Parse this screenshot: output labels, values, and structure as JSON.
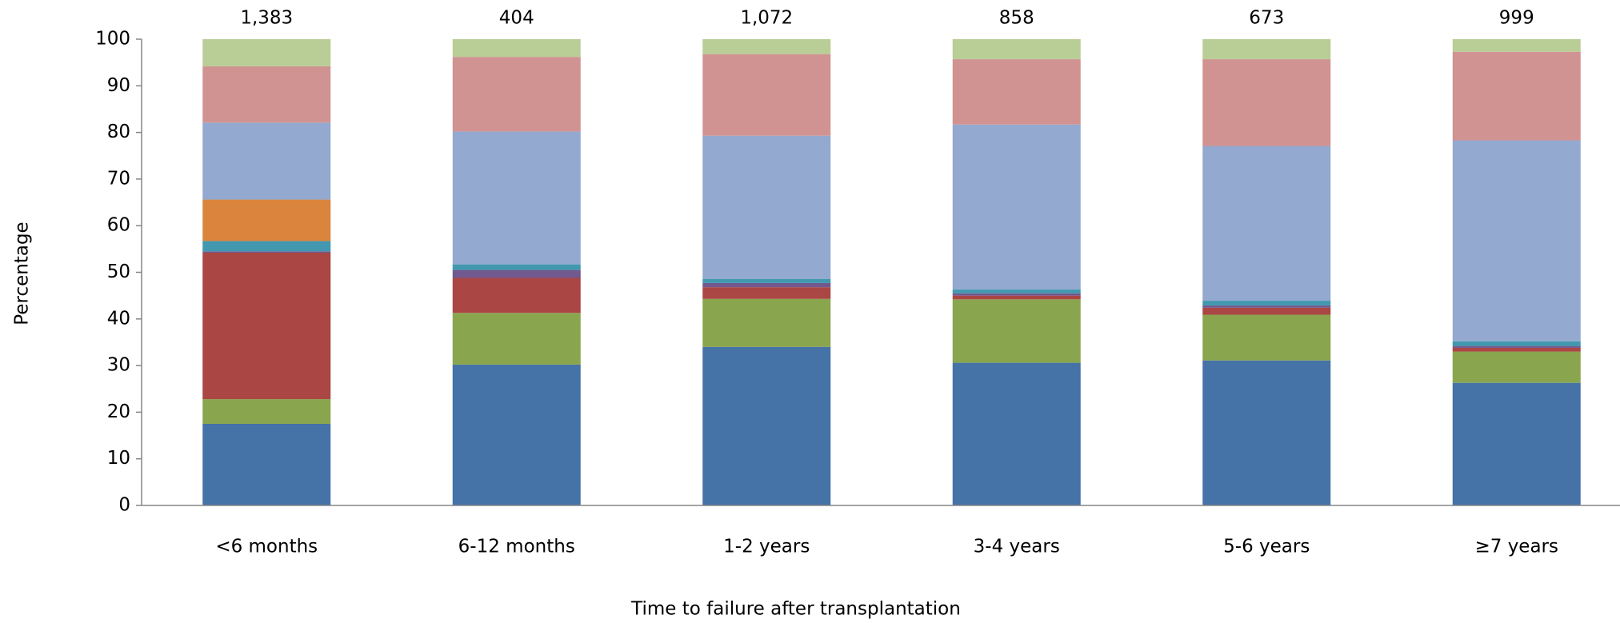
{
  "chart_data": {
    "type": "stacked_bar",
    "x_label": "Time to failure after transplantation",
    "y_label": "Percentage",
    "categories": [
      "<6 months",
      "6-12 months",
      "1-2 years",
      "3-4 years",
      "5-6 years",
      "≥7 years"
    ],
    "series": [
      {
        "color": "#4572a7",
        "values": [
          17.5,
          30.2,
          34.0,
          30.6,
          31.1,
          26.3
        ]
      },
      {
        "color": "#89a54e",
        "values": [
          5.3,
          11.1,
          10.3,
          13.6,
          9.8,
          6.7
        ]
      },
      {
        "color": "#aa4643",
        "values": [
          31.4,
          7.5,
          2.5,
          0.8,
          1.5,
          0.8
        ]
      },
      {
        "color": "#71588f",
        "values": [
          0.3,
          1.7,
          0.9,
          0.5,
          0.5,
          0.4
        ]
      },
      {
        "color": "#4198af",
        "values": [
          2.2,
          1.2,
          0.9,
          0.8,
          1.0,
          1.0
        ]
      },
      {
        "color": "#db843d",
        "values": [
          8.9,
          0,
          0,
          0,
          0,
          0
        ]
      },
      {
        "color": "#93a9cf",
        "values": [
          16.5,
          28.5,
          30.7,
          35.4,
          33.2,
          43.1
        ]
      },
      {
        "color": "#d19392",
        "values": [
          12.1,
          16.0,
          17.5,
          14.0,
          18.6,
          19.0
        ]
      },
      {
        "color": "#b9cd96",
        "values": [
          5.8,
          3.8,
          3.2,
          4.3,
          4.3,
          2.7
        ]
      }
    ],
    "n_values": [
      1383,
      404,
      1072,
      858,
      673,
      999
    ],
    "n_labels": [
      "1,383",
      "404",
      "1,072",
      "858",
      "673",
      "999"
    ],
    "ylim": [
      0,
      100
    ],
    "yticks": [
      0,
      10,
      20,
      30,
      40,
      50,
      60,
      70,
      80,
      90,
      100
    ],
    "grid": false
  }
}
